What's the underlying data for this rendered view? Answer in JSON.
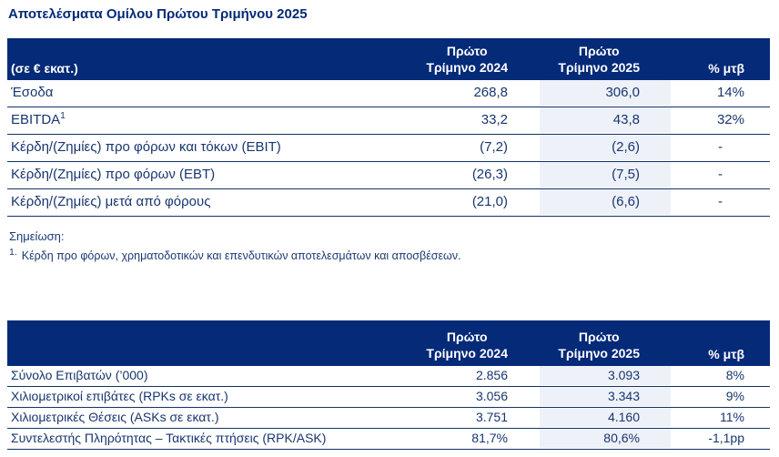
{
  "page": {
    "title": "Αποτελέσματα Ομίλου Πρώτου Τριμήνου 2025"
  },
  "colors": {
    "header_navy": "#042a78",
    "row_highlight": "#eef1f8",
    "text_navy": "#17366f",
    "header_text": "#ffffff"
  },
  "col_headers": {
    "q2024_line1": "Πρώτο",
    "q2024_line2": "Τρίμηνο 2024",
    "q2025_line1": "Πρώτο",
    "q2025_line2": "Τρίμηνο 2025",
    "change": "% μτβ"
  },
  "table1": {
    "unit_label": "(σε € εκατ.)",
    "rows": [
      {
        "label": "Έσοδα",
        "q2024": "268,8",
        "q2025": "306,0",
        "change": "14%"
      },
      {
        "label": "EBITDA",
        "label_sup": "1",
        "q2024": "33,2",
        "q2025": "43,8",
        "change": "32%"
      },
      {
        "label": "Κέρδη/(Ζημίες) προ φόρων και τόκων (EBIT)",
        "q2024": "(7,2)",
        "q2025": "(2,6)",
        "change": "-"
      },
      {
        "label": "Κέρδη/(Ζημίες) προ φόρων (EBT)",
        "q2024": "(26,3)",
        "q2025": "(7,5)",
        "change": "-"
      },
      {
        "label": "Κέρδη/(Ζημίες) μετά από φόρους",
        "q2024": "(21,0)",
        "q2025": "(6,6)",
        "change": "-"
      }
    ]
  },
  "notes": {
    "heading": "Σημείωση:",
    "items": [
      {
        "num": "1.",
        "text": "Κέρδη προ φόρων, χρηματοδοτικών και επενδυτικών αποτελεσμάτων και αποσβέσεων."
      }
    ]
  },
  "table2": {
    "rows": [
      {
        "label": "Σύνολο Επιβατών (’000)",
        "q2024": "2.856",
        "q2025": "3.093",
        "change": "8%"
      },
      {
        "label": "Χιλιομετρικοί επιβάτες (RPKs σε εκατ.)",
        "q2024": "3.056",
        "q2025": "3.343",
        "change": "9%"
      },
      {
        "label": "Χιλιομετρικές Θέσεις (ASKs σε εκατ.)",
        "q2024": "3.751",
        "q2025": "4.160",
        "change": "11%"
      },
      {
        "label": "Συντελεστής Πληρότητας – Τακτικές πτήσεις (RPK/ASK)",
        "q2024": "81,7%",
        "q2025": "80,6%",
        "change": "-1,1pp"
      }
    ]
  }
}
